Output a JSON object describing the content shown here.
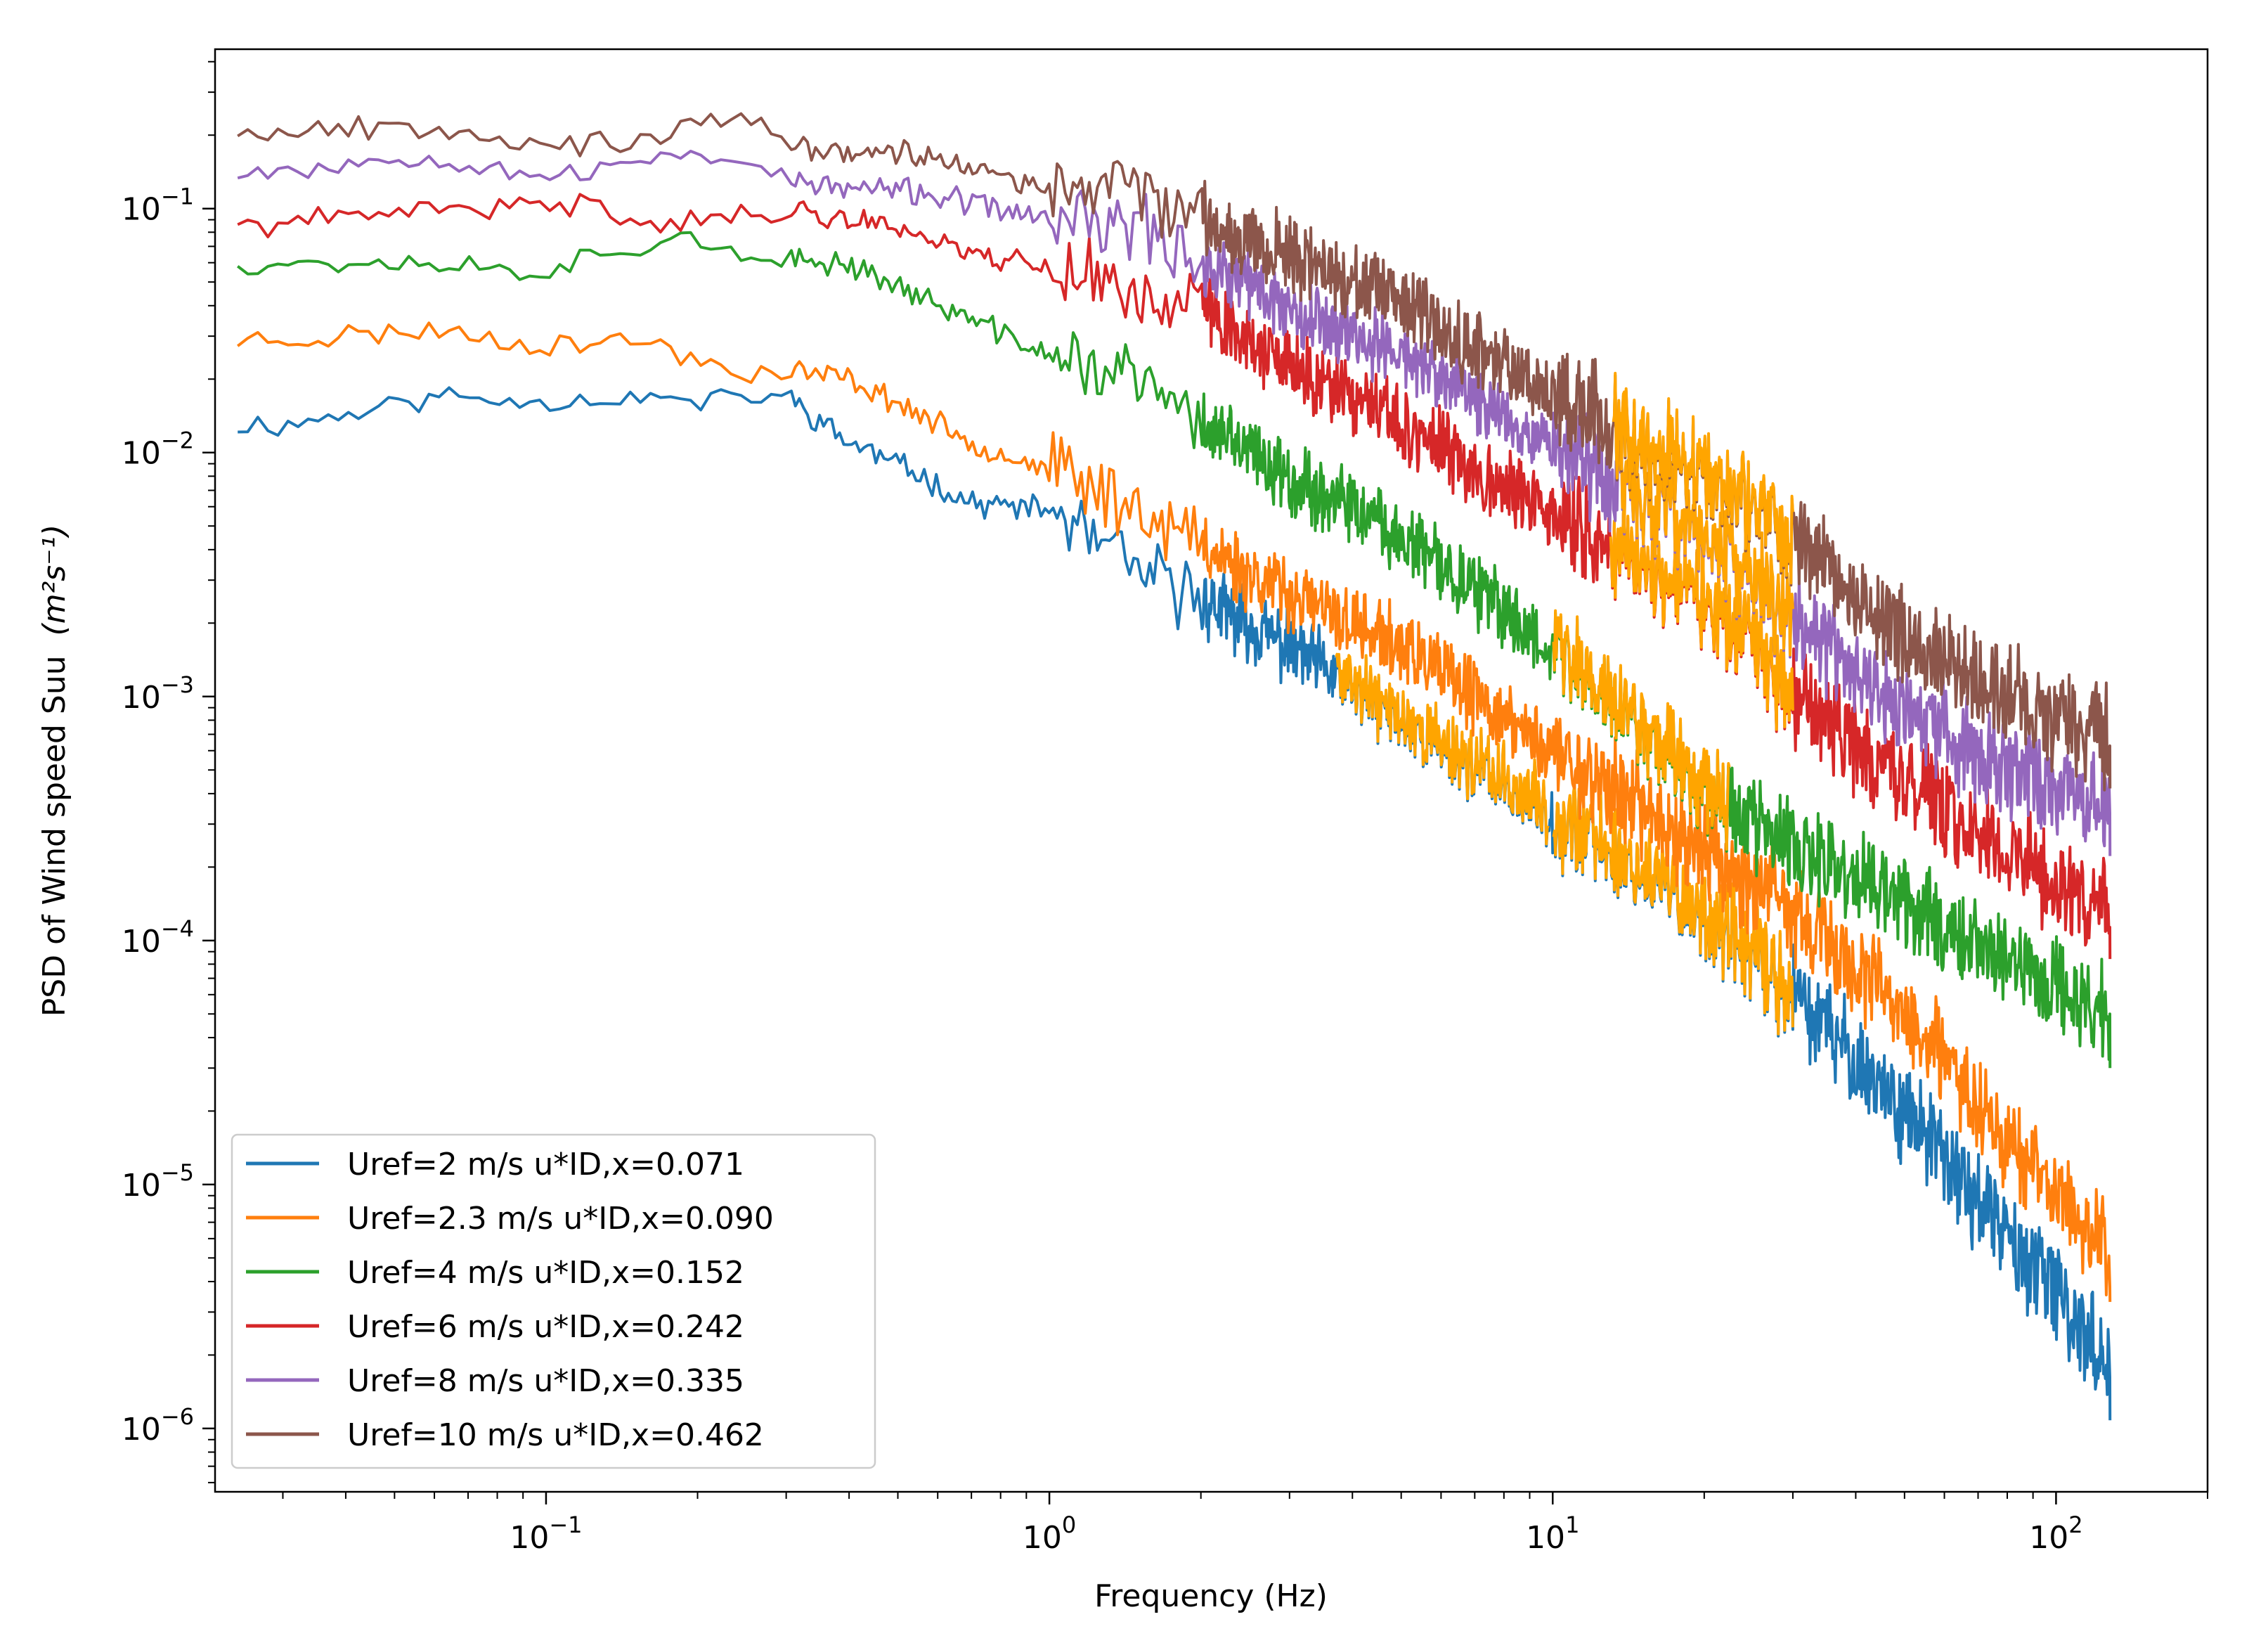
{
  "chart_data": {
    "type": "line",
    "title": "",
    "xlabel": "Frequency (Hz)",
    "ylabel": "PSD of Wind speed Suu",
    "ylabel_unit": "(m²s⁻¹)",
    "xscale": "log",
    "yscale": "log",
    "xlim": [
      0.022,
      200
    ],
    "ylim": [
      5.5e-07,
      0.45
    ],
    "grid": false,
    "legend_position": "lower-left",
    "x_ticks": [
      {
        "base": "10",
        "exp": "−1",
        "value": 0.1
      },
      {
        "base": "10",
        "exp": "0",
        "value": 1
      },
      {
        "base": "10",
        "exp": "1",
        "value": 10
      },
      {
        "base": "10",
        "exp": "2",
        "value": 100
      }
    ],
    "y_ticks": [
      {
        "base": "10",
        "exp": "−1",
        "value": 0.1
      },
      {
        "base": "10",
        "exp": "−2",
        "value": 0.01
      },
      {
        "base": "10",
        "exp": "−3",
        "value": 0.001
      },
      {
        "base": "10",
        "exp": "−4",
        "value": 0.0001
      },
      {
        "base": "10",
        "exp": "−5",
        "value": 1e-05
      },
      {
        "base": "10",
        "exp": "−6",
        "value": 1e-06
      }
    ],
    "noise_overlay_color": "#ffa500",
    "series": [
      {
        "name": "Uref=2 m/s u*ID,x=0.071",
        "color": "#1f77b4",
        "seed": 11,
        "x": [
          0.0244,
          0.0305,
          0.061,
          0.092,
          0.122,
          0.153,
          0.2,
          0.25,
          0.3,
          0.4,
          0.5,
          0.7,
          1,
          1.5,
          2,
          3,
          5,
          10,
          20,
          30,
          50,
          100,
          128
        ],
        "y": [
          0.013,
          0.013,
          0.017,
          0.0163,
          0.0165,
          0.017,
          0.016,
          0.017,
          0.017,
          0.011,
          0.009,
          0.0062,
          0.0058,
          0.0032,
          0.0025,
          0.0016,
          0.0008,
          0.00033,
          0.00013,
          6e-05,
          2e-05,
          3.5e-06,
          1.8e-06
        ]
      },
      {
        "name": "Uref=2.3 m/s u*ID,x=0.090",
        "color": "#ff7f0e",
        "seed": 23,
        "x": [
          0.0244,
          0.0305,
          0.061,
          0.092,
          0.122,
          0.153,
          0.2,
          0.25,
          0.3,
          0.4,
          0.5,
          0.7,
          1,
          1.5,
          2,
          3,
          5,
          10,
          20,
          30,
          50,
          100,
          128
        ],
        "y": [
          0.029,
          0.029,
          0.032,
          0.028,
          0.028,
          0.029,
          0.024,
          0.021,
          0.022,
          0.02,
          0.016,
          0.011,
          0.0085,
          0.006,
          0.0042,
          0.0026,
          0.0016,
          0.0006,
          0.00024,
          0.00013,
          5e-05,
          9e-06,
          5.5e-06
        ]
      },
      {
        "name": "Uref=4 m/s u*ID,x=0.152",
        "color": "#2ca02c",
        "seed": 37,
        "x": [
          0.0244,
          0.0305,
          0.061,
          0.092,
          0.122,
          0.153,
          0.2,
          0.25,
          0.3,
          0.4,
          0.5,
          0.7,
          1,
          1.5,
          2,
          3,
          5,
          10,
          20,
          30,
          50,
          100,
          128
        ],
        "y": [
          0.06,
          0.06,
          0.06,
          0.055,
          0.062,
          0.07,
          0.08,
          0.058,
          0.06,
          0.06,
          0.048,
          0.035,
          0.025,
          0.02,
          0.013,
          0.008,
          0.0045,
          0.0016,
          0.00045,
          0.00023,
          0.000145,
          6.5e-05,
          5e-05
        ]
      },
      {
        "name": "Uref=6 m/s u*ID,x=0.242",
        "color": "#d62728",
        "seed": 41,
        "x": [
          0.0244,
          0.0305,
          0.061,
          0.092,
          0.122,
          0.153,
          0.2,
          0.25,
          0.3,
          0.4,
          0.5,
          0.7,
          1,
          1.5,
          2,
          3,
          5,
          10,
          20,
          30,
          50,
          100,
          128
        ],
        "y": [
          0.086,
          0.086,
          0.1,
          0.1,
          0.105,
          0.09,
          0.09,
          0.092,
          0.1,
          0.09,
          0.085,
          0.066,
          0.058,
          0.045,
          0.04,
          0.022,
          0.013,
          0.0055,
          0.0025,
          0.001,
          0.00045,
          0.00017,
          0.00014
        ]
      },
      {
        "name": "Uref=8 m/s u*ID,x=0.335",
        "color": "#9467bd",
        "seed": 53,
        "x": [
          0.0244,
          0.0305,
          0.061,
          0.092,
          0.122,
          0.153,
          0.2,
          0.25,
          0.3,
          0.4,
          0.5,
          0.7,
          1,
          1.5,
          2,
          3,
          5,
          10,
          20,
          30,
          50,
          100,
          128
        ],
        "y": [
          0.145,
          0.145,
          0.165,
          0.14,
          0.135,
          0.16,
          0.17,
          0.16,
          0.13,
          0.12,
          0.12,
          0.105,
          0.09,
          0.085,
          0.06,
          0.04,
          0.025,
          0.011,
          0.0045,
          0.0021,
          0.00085,
          0.00042,
          0.00037
        ]
      },
      {
        "name": "Uref=10 m/s u*ID,x=0.462",
        "color": "#8c564b",
        "seed": 67,
        "x": [
          0.0244,
          0.0305,
          0.061,
          0.092,
          0.122,
          0.153,
          0.2,
          0.25,
          0.3,
          0.4,
          0.5,
          0.7,
          1,
          1.5,
          2,
          3,
          5,
          10,
          20,
          30,
          50,
          100,
          128
        ],
        "y": [
          0.21,
          0.21,
          0.22,
          0.19,
          0.185,
          0.18,
          0.22,
          0.24,
          0.18,
          0.17,
          0.17,
          0.15,
          0.115,
          0.13,
          0.09,
          0.065,
          0.04,
          0.018,
          0.008,
          0.0046,
          0.0017,
          0.0008,
          0.0007
        ]
      }
    ]
  }
}
